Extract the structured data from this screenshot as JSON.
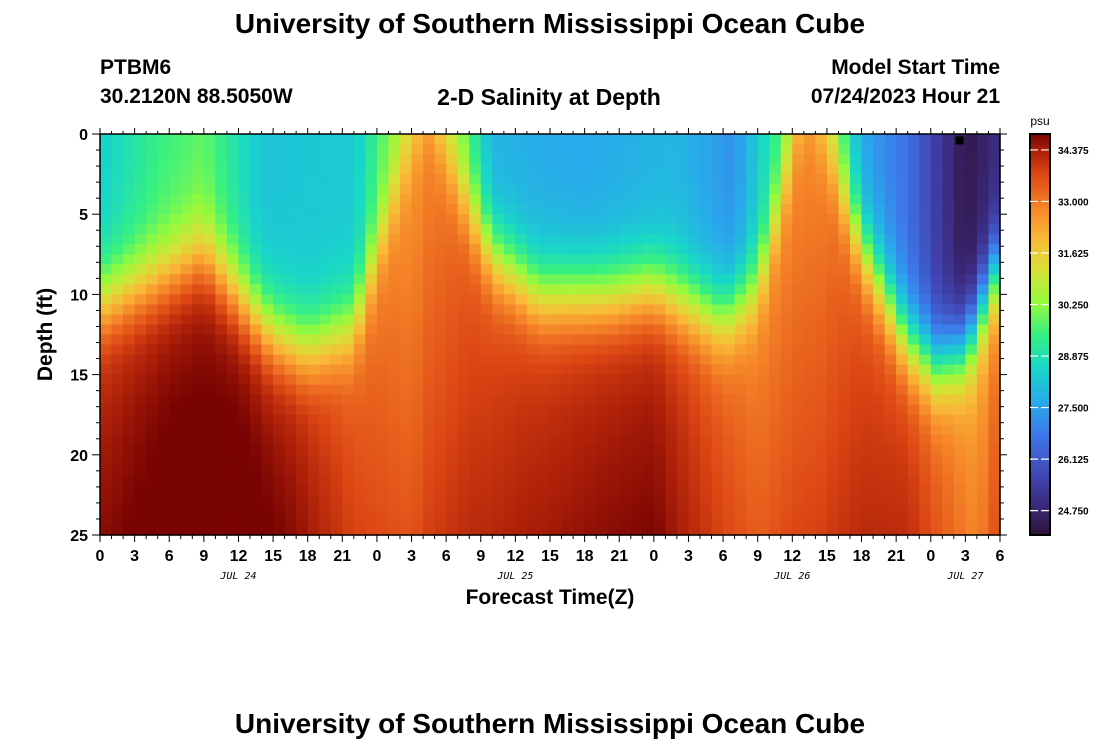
{
  "header": {
    "title": "University of Southern Mississippi Ocean Cube",
    "station_id": "PTBM6",
    "station_coords": "30.2120N  88.5050W",
    "plot_title": "2-D Salinity at Depth",
    "start_label": "Model Start Time",
    "start_time": "07/24/2023 Hour 21"
  },
  "footer": {
    "title": "University of Southern Mississippi Ocean Cube"
  },
  "chart_data": {
    "type": "heatmap",
    "title": "2-D Salinity at Depth",
    "xlabel": "Forecast Time(Z)",
    "ylabel": "Depth (ft)",
    "x_tick_labels": [
      "0",
      "3",
      "6",
      "9",
      "12",
      "15",
      "18",
      "21",
      "0",
      "3",
      "6",
      "9",
      "12",
      "15",
      "18",
      "21",
      "0",
      "3",
      "6",
      "9",
      "12",
      "15",
      "18",
      "21",
      "0",
      "3",
      "6"
    ],
    "x_range_hours": [
      0,
      78
    ],
    "date_labels": [
      {
        "label": "JUL 24",
        "hour": 12
      },
      {
        "label": "JUL 25",
        "hour": 36
      },
      {
        "label": "JUL 26",
        "hour": 60
      },
      {
        "label": "JUL 27",
        "hour": 75
      }
    ],
    "y_tick_labels": [
      "0",
      "5",
      "10",
      "15",
      "20",
      "25"
    ],
    "y_range": [
      0,
      25
    ],
    "y_inverted": true,
    "colorbar": {
      "unit": "psu",
      "min": 24.1,
      "max": 34.8,
      "tick_labels": [
        "34.375",
        "33.000",
        "31.625",
        "30.250",
        "28.875",
        "27.500",
        "26.125",
        "24.750"
      ]
    },
    "max_marker": {
      "hour": 74.5,
      "depth": 0.4
    },
    "halocline_depth_ft": [
      {
        "hour": 0,
        "depth": 10.5
      },
      {
        "hour": 5,
        "depth": 9.0
      },
      {
        "hour": 9,
        "depth": 7.5
      },
      {
        "hour": 12,
        "depth": 10.0
      },
      {
        "hour": 15,
        "depth": 12.5
      },
      {
        "hour": 18,
        "depth": 13.5
      },
      {
        "hour": 22,
        "depth": 12.0
      },
      {
        "hour": 25,
        "depth": 5.0
      },
      {
        "hour": 27,
        "depth": 1.0
      },
      {
        "hour": 28.5,
        "depth": -1.0
      },
      {
        "hour": 31,
        "depth": 3.0
      },
      {
        "hour": 34,
        "depth": 7.5
      },
      {
        "hour": 38,
        "depth": 10.0
      },
      {
        "hour": 44,
        "depth": 10.0
      },
      {
        "hour": 48,
        "depth": 9.5
      },
      {
        "hour": 51,
        "depth": 10.5
      },
      {
        "hour": 54,
        "depth": 11.5
      },
      {
        "hour": 57,
        "depth": 9.5
      },
      {
        "hour": 59,
        "depth": 4.0
      },
      {
        "hour": 61,
        "depth": -1.0
      },
      {
        "hour": 63,
        "depth": 1.0
      },
      {
        "hour": 66,
        "depth": 7.0
      },
      {
        "hour": 70,
        "depth": 13.0
      },
      {
        "hour": 72.5,
        "depth": 14.5
      },
      {
        "hour": 75,
        "depth": 13.5
      },
      {
        "hour": 78,
        "depth": 8.0
      }
    ],
    "deep_salinity_psu": [
      {
        "hour": 0,
        "value": 34.3
      },
      {
        "hour": 6,
        "value": 34.7
      },
      {
        "hour": 12,
        "value": 34.8
      },
      {
        "hour": 17,
        "value": 34.4
      },
      {
        "hour": 22,
        "value": 33.5
      },
      {
        "hour": 27,
        "value": 32.8
      },
      {
        "hour": 32,
        "value": 33.6
      },
      {
        "hour": 37,
        "value": 34.0
      },
      {
        "hour": 44,
        "value": 34.3
      },
      {
        "hour": 48,
        "value": 34.4
      },
      {
        "hour": 53,
        "value": 33.6
      },
      {
        "hour": 57,
        "value": 33.0
      },
      {
        "hour": 62,
        "value": 33.0
      },
      {
        "hour": 66,
        "value": 33.7
      },
      {
        "hour": 70,
        "value": 33.9
      },
      {
        "hour": 74,
        "value": 33.0
      },
      {
        "hour": 76,
        "value": 32.5
      },
      {
        "hour": 78,
        "value": 33.3
      }
    ],
    "surface_salinity_psu": [
      {
        "hour": 0,
        "value": 28.4
      },
      {
        "hour": 5,
        "value": 29.4
      },
      {
        "hour": 9,
        "value": 29.8
      },
      {
        "hour": 14,
        "value": 28.2
      },
      {
        "hour": 22,
        "value": 28.3
      },
      {
        "hour": 25,
        "value": 30.0
      },
      {
        "hour": 28,
        "value": 31.5
      },
      {
        "hour": 31,
        "value": 30.2
      },
      {
        "hour": 34,
        "value": 27.8
      },
      {
        "hour": 42,
        "value": 27.6
      },
      {
        "hour": 50,
        "value": 27.9
      },
      {
        "hour": 55,
        "value": 27.2
      },
      {
        "hour": 59,
        "value": 29.5
      },
      {
        "hour": 61,
        "value": 32.0
      },
      {
        "hour": 63,
        "value": 31.0
      },
      {
        "hour": 66,
        "value": 27.6
      },
      {
        "hour": 70,
        "value": 26.6
      },
      {
        "hour": 75,
        "value": 24.3
      },
      {
        "hour": 78,
        "value": 25.0
      }
    ]
  }
}
